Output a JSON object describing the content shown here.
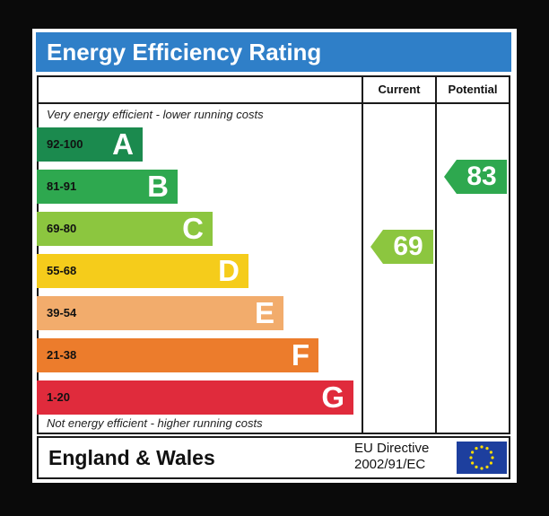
{
  "title": "Energy Efficiency Rating",
  "columns": {
    "current": "Current",
    "potential": "Potential"
  },
  "notes": {
    "top": "Very energy efficient - lower running costs",
    "bottom": "Not energy efficient - higher running costs"
  },
  "footer": {
    "region": "England & Wales",
    "directive_line1": "EU Directive",
    "directive_line2": "2002/91/EC",
    "flag_icon": "eu-flag-icon"
  },
  "chart_data": {
    "type": "bar",
    "title": "Energy Efficiency Rating",
    "categories": [
      "A",
      "B",
      "C",
      "D",
      "E",
      "F",
      "G"
    ],
    "bands": [
      {
        "letter": "A",
        "range": "92-100",
        "min": 92,
        "max": 100,
        "color": "#1b8a4e"
      },
      {
        "letter": "B",
        "range": "81-91",
        "min": 81,
        "max": 91,
        "color": "#2ea84f"
      },
      {
        "letter": "C",
        "range": "69-80",
        "min": 69,
        "max": 80,
        "color": "#8cc63f"
      },
      {
        "letter": "D",
        "range": "55-68",
        "min": 55,
        "max": 68,
        "color": "#f5cc1b"
      },
      {
        "letter": "E",
        "range": "39-54",
        "min": 39,
        "max": 54,
        "color": "#f2ac6c"
      },
      {
        "letter": "F",
        "range": "21-38",
        "min": 21,
        "max": 38,
        "color": "#ec7c2c"
      },
      {
        "letter": "G",
        "range": "1-20",
        "min": 1,
        "max": 20,
        "color": "#e02b3c"
      }
    ],
    "current": {
      "value": 69,
      "band": "C",
      "color": "#8cc63f"
    },
    "potential": {
      "value": 83,
      "band": "B",
      "color": "#2ea84f"
    }
  }
}
